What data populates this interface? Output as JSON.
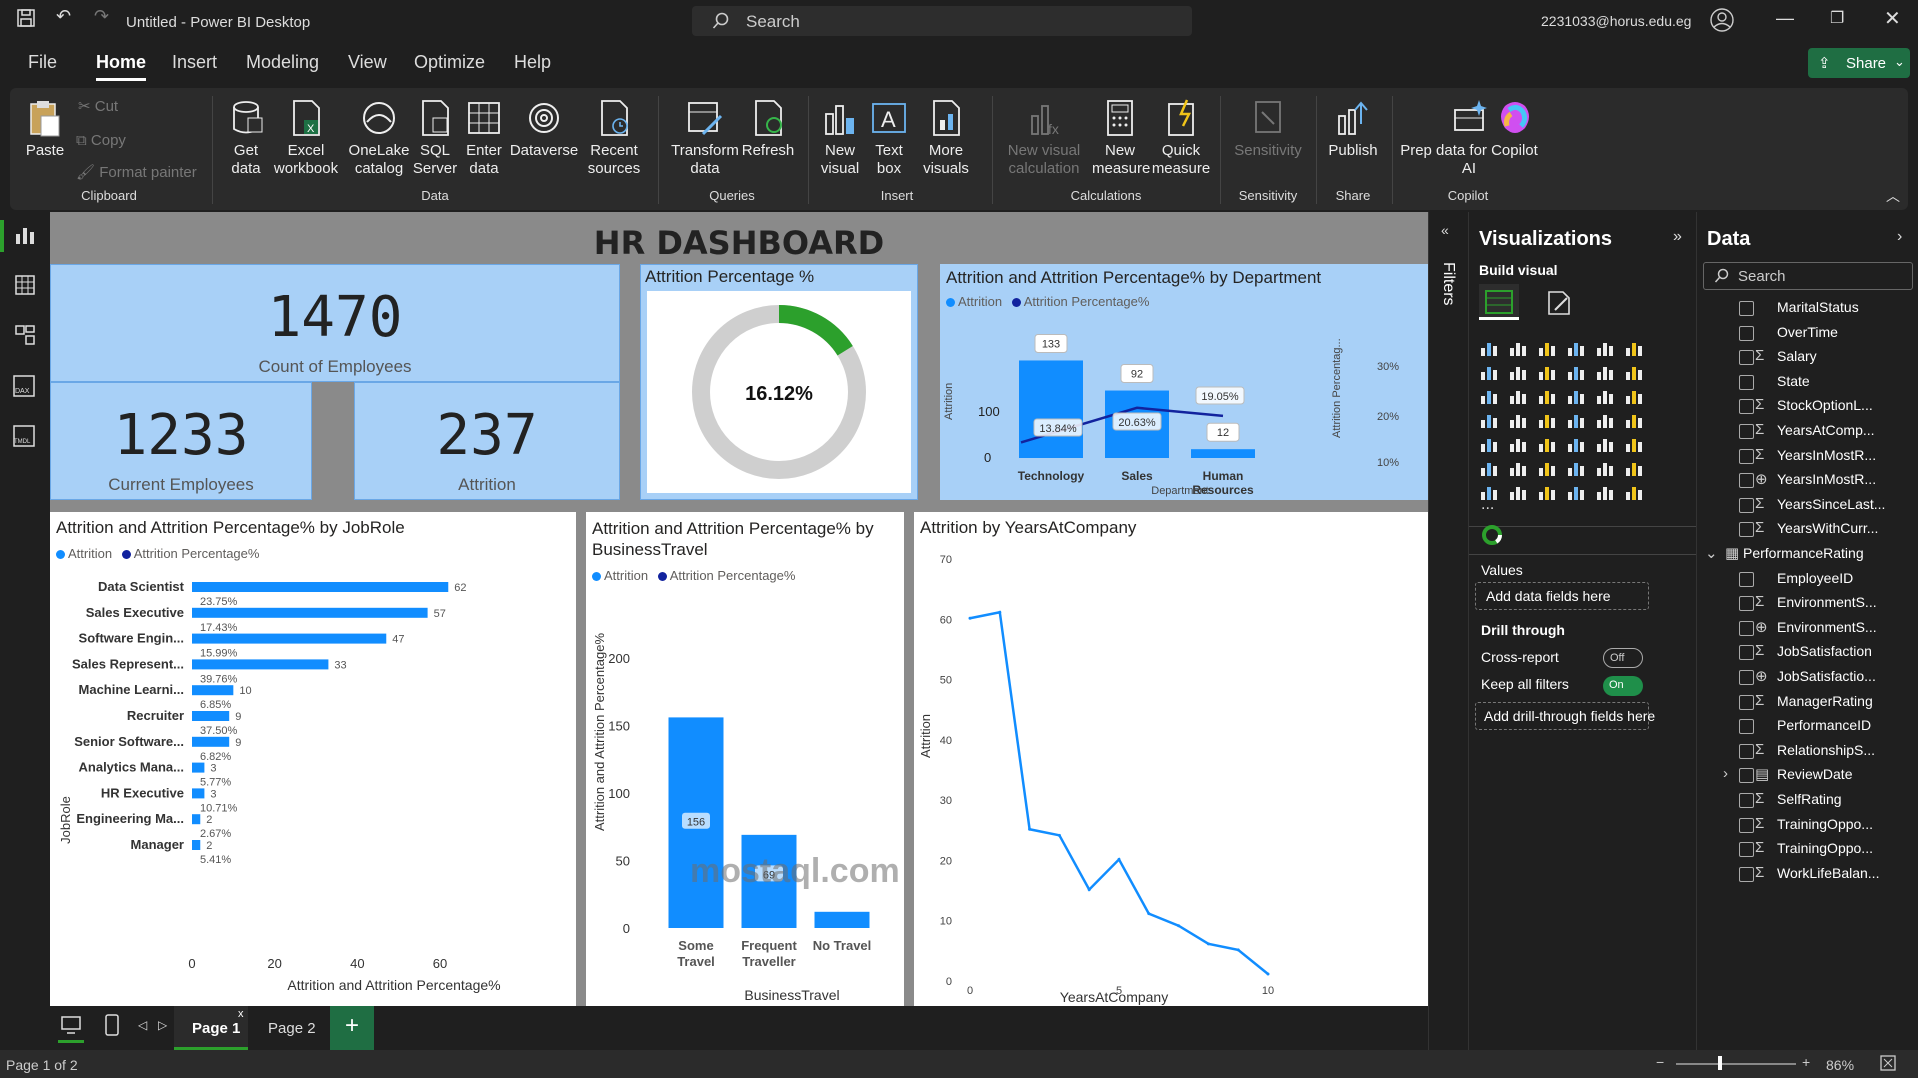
{
  "titlebar": {
    "title": "Untitled - Power BI Desktop",
    "search_placeholder": "Search",
    "account": "2231033@horus.edu.eg"
  },
  "menu": [
    "File",
    "Home",
    "Insert",
    "Modeling",
    "View",
    "Optimize",
    "Help"
  ],
  "share_label": "Share",
  "ribbon": {
    "clipboard": {
      "paste": "Paste",
      "cut": "Cut",
      "copy": "Copy",
      "format_painter": "Format painter",
      "group": "Clipboard"
    },
    "data": {
      "get_data": "Get data",
      "excel": "Excel workbook",
      "onelake": "OneLake catalog",
      "sql": "SQL Server",
      "enter": "Enter data",
      "dataverse": "Dataverse",
      "recent": "Recent sources",
      "group": "Data"
    },
    "queries": {
      "transform": "Transform data",
      "refresh": "Refresh",
      "group": "Queries"
    },
    "insert": {
      "new_visual": "New visual",
      "text_box": "Text box",
      "more_visuals": "More visuals",
      "group": "Insert"
    },
    "calculations": {
      "new_visual_calc": "New visual calculation",
      "new_measure": "New measure",
      "quick_measure": "Quick measure",
      "group": "Calculations"
    },
    "sensitivity": {
      "label": "Sensitivity",
      "group": "Sensitivity"
    },
    "share": {
      "publish": "Publish",
      "group": "Share"
    },
    "copilot": {
      "prep": "Prep data for Copilot AI",
      "copilot": "Copilot",
      "group": "Copilot"
    }
  },
  "dashboard": {
    "title": "HR DASHBOARD",
    "kpi_total": {
      "value": "1470",
      "label": "Count of Employees"
    },
    "kpi_current": {
      "value": "1233",
      "label": "Current Employees"
    },
    "kpi_attrition": {
      "value": "237",
      "label": "Attrition"
    },
    "gauge": {
      "title": "Attrition Percentage %",
      "value": "16.12%",
      "fraction": 0.1612
    },
    "legend_attrition": "Attrition",
    "legend_pct": "Attrition Percentage%"
  },
  "chart_data": [
    {
      "type": "bar",
      "title": "Attrition and Attrition Percentage% by Department",
      "categories": [
        "Technology",
        "Sales",
        "Human Resources"
      ],
      "series": [
        {
          "name": "Attrition",
          "values": [
            133,
            92,
            12
          ]
        },
        {
          "name": "Attrition Percentage%",
          "values": [
            13.84,
            20.63,
            19.05
          ]
        }
      ],
      "pct_labels": [
        "13.84%",
        "20.63%",
        "19.05%"
      ],
      "xlabel": "Department",
      "ylabel": "Attrition",
      "y2label": "Attrition Percentag...",
      "yticks": [
        "100",
        "0"
      ],
      "y2ticks": [
        "30%",
        "20%",
        "10%"
      ],
      "ylim": [
        0,
        150
      ]
    },
    {
      "type": "bar",
      "orientation": "horizontal",
      "title": "Attrition and Attrition Percentage% by JobRole",
      "categories": [
        "Data Scientist",
        "Sales Executive",
        "Software Engin...",
        "Sales Represent...",
        "Machine Learni...",
        "Recruiter",
        "Senior Software...",
        "Analytics Mana...",
        "HR Executive",
        "Engineering Ma...",
        "Manager"
      ],
      "series": [
        {
          "name": "Attrition",
          "values": [
            62,
            57,
            47,
            33,
            10,
            9,
            9,
            3,
            3,
            2,
            2
          ]
        },
        {
          "name": "Attrition Percentage%",
          "values": [
            23.75,
            17.43,
            15.99,
            39.76,
            6.85,
            37.5,
            6.82,
            5.77,
            10.71,
            2.67,
            5.41
          ]
        }
      ],
      "pct_labels": [
        "23.75%",
        "17.43%",
        "15.99%",
        "39.76%",
        "6.85%",
        "37.50%",
        "6.82%",
        "5.77%",
        "10.71%",
        "2.67%",
        "5.41%"
      ],
      "xlabel": "Attrition and Attrition Percentage%",
      "ylabel": "JobRole",
      "xticks": [
        "0",
        "20",
        "40",
        "60"
      ],
      "xlim": [
        0,
        65
      ]
    },
    {
      "type": "bar",
      "title": "Attrition and Attrition Percentage% by BusinessTravel",
      "categories": [
        "Some Travel",
        "Frequent Traveller",
        "No Travel"
      ],
      "series": [
        {
          "name": "Attrition",
          "values": [
            156,
            69,
            12
          ]
        }
      ],
      "xlabel": "BusinessTravel",
      "ylabel": "Attrition and Attrition Percentage%",
      "yticks": [
        "200",
        "150",
        "100",
        "50",
        "0"
      ],
      "ylim": [
        0,
        200
      ]
    },
    {
      "type": "line",
      "title": "Attrition by YearsAtCompany",
      "x": [
        0,
        1,
        2,
        3,
        4,
        5,
        6,
        7,
        8,
        9,
        10
      ],
      "values": [
        60,
        61,
        25,
        24,
        15,
        20,
        11,
        9,
        6,
        5,
        1
      ],
      "xlabel": "YearsAtCompany",
      "ylabel": "Attrition",
      "yticks": [
        "70",
        "60",
        "50",
        "40",
        "30",
        "20",
        "10",
        "0"
      ],
      "xticks": [
        "0",
        "5",
        "10"
      ],
      "xlim": [
        0,
        10
      ],
      "ylim": [
        0,
        70
      ]
    }
  ],
  "filters_label": "Filters",
  "viz_pane": {
    "title": "Visualizations",
    "build": "Build visual",
    "values": "Values",
    "add_data": "Add data fields here",
    "drill": "Drill through",
    "cross": "Cross-report",
    "cross_state": "Off",
    "keep": "Keep all filters",
    "keep_state": "On",
    "add_drill": "Add drill-through fields here",
    "more": "..."
  },
  "data_pane": {
    "title": "Data",
    "search_placeholder": "Search",
    "fields": [
      {
        "name": "MaritalStatus",
        "sigma": ""
      },
      {
        "name": "OverTime",
        "sigma": ""
      },
      {
        "name": "Salary",
        "sigma": "Σ"
      },
      {
        "name": "State",
        "sigma": ""
      },
      {
        "name": "StockOptionL...",
        "sigma": "Σ"
      },
      {
        "name": "YearsAtComp...",
        "sigma": "Σ"
      },
      {
        "name": "YearsInMostR...",
        "sigma": "Σ"
      },
      {
        "name": "YearsInMostR...",
        "sigma": "⊕"
      },
      {
        "name": "YearsSinceLast...",
        "sigma": "Σ"
      },
      {
        "name": "YearsWithCurr...",
        "sigma": "Σ"
      },
      {
        "name": "PerformanceRating",
        "sigma": "table"
      },
      {
        "name": "EmployeeID",
        "sigma": ""
      },
      {
        "name": "EnvironmentS...",
        "sigma": "Σ"
      },
      {
        "name": "EnvironmentS...",
        "sigma": "⊕"
      },
      {
        "name": "JobSatisfaction",
        "sigma": "Σ"
      },
      {
        "name": "JobSatisfactio...",
        "sigma": "⊕"
      },
      {
        "name": "ManagerRating",
        "sigma": "Σ"
      },
      {
        "name": "PerformanceID",
        "sigma": ""
      },
      {
        "name": "RelationshipS...",
        "sigma": "Σ"
      },
      {
        "name": "ReviewDate",
        "sigma": "date"
      },
      {
        "name": "SelfRating",
        "sigma": "Σ"
      },
      {
        "name": "TrainingOppo...",
        "sigma": "Σ"
      },
      {
        "name": "TrainingOppo...",
        "sigma": "Σ"
      },
      {
        "name": "WorkLifeBalan...",
        "sigma": "Σ"
      }
    ]
  },
  "pages": {
    "page1": "Page 1",
    "page2": "Page 2",
    "add": "+"
  },
  "status": {
    "page_info": "Page 1 of 2",
    "zoom": "86%"
  },
  "watermark": "mostaql.com",
  "colors": {
    "accent": "#118dff",
    "dark_series": "#12239e",
    "kpi_bg": "#a8d0f7",
    "gauge": "#2ca02c"
  }
}
